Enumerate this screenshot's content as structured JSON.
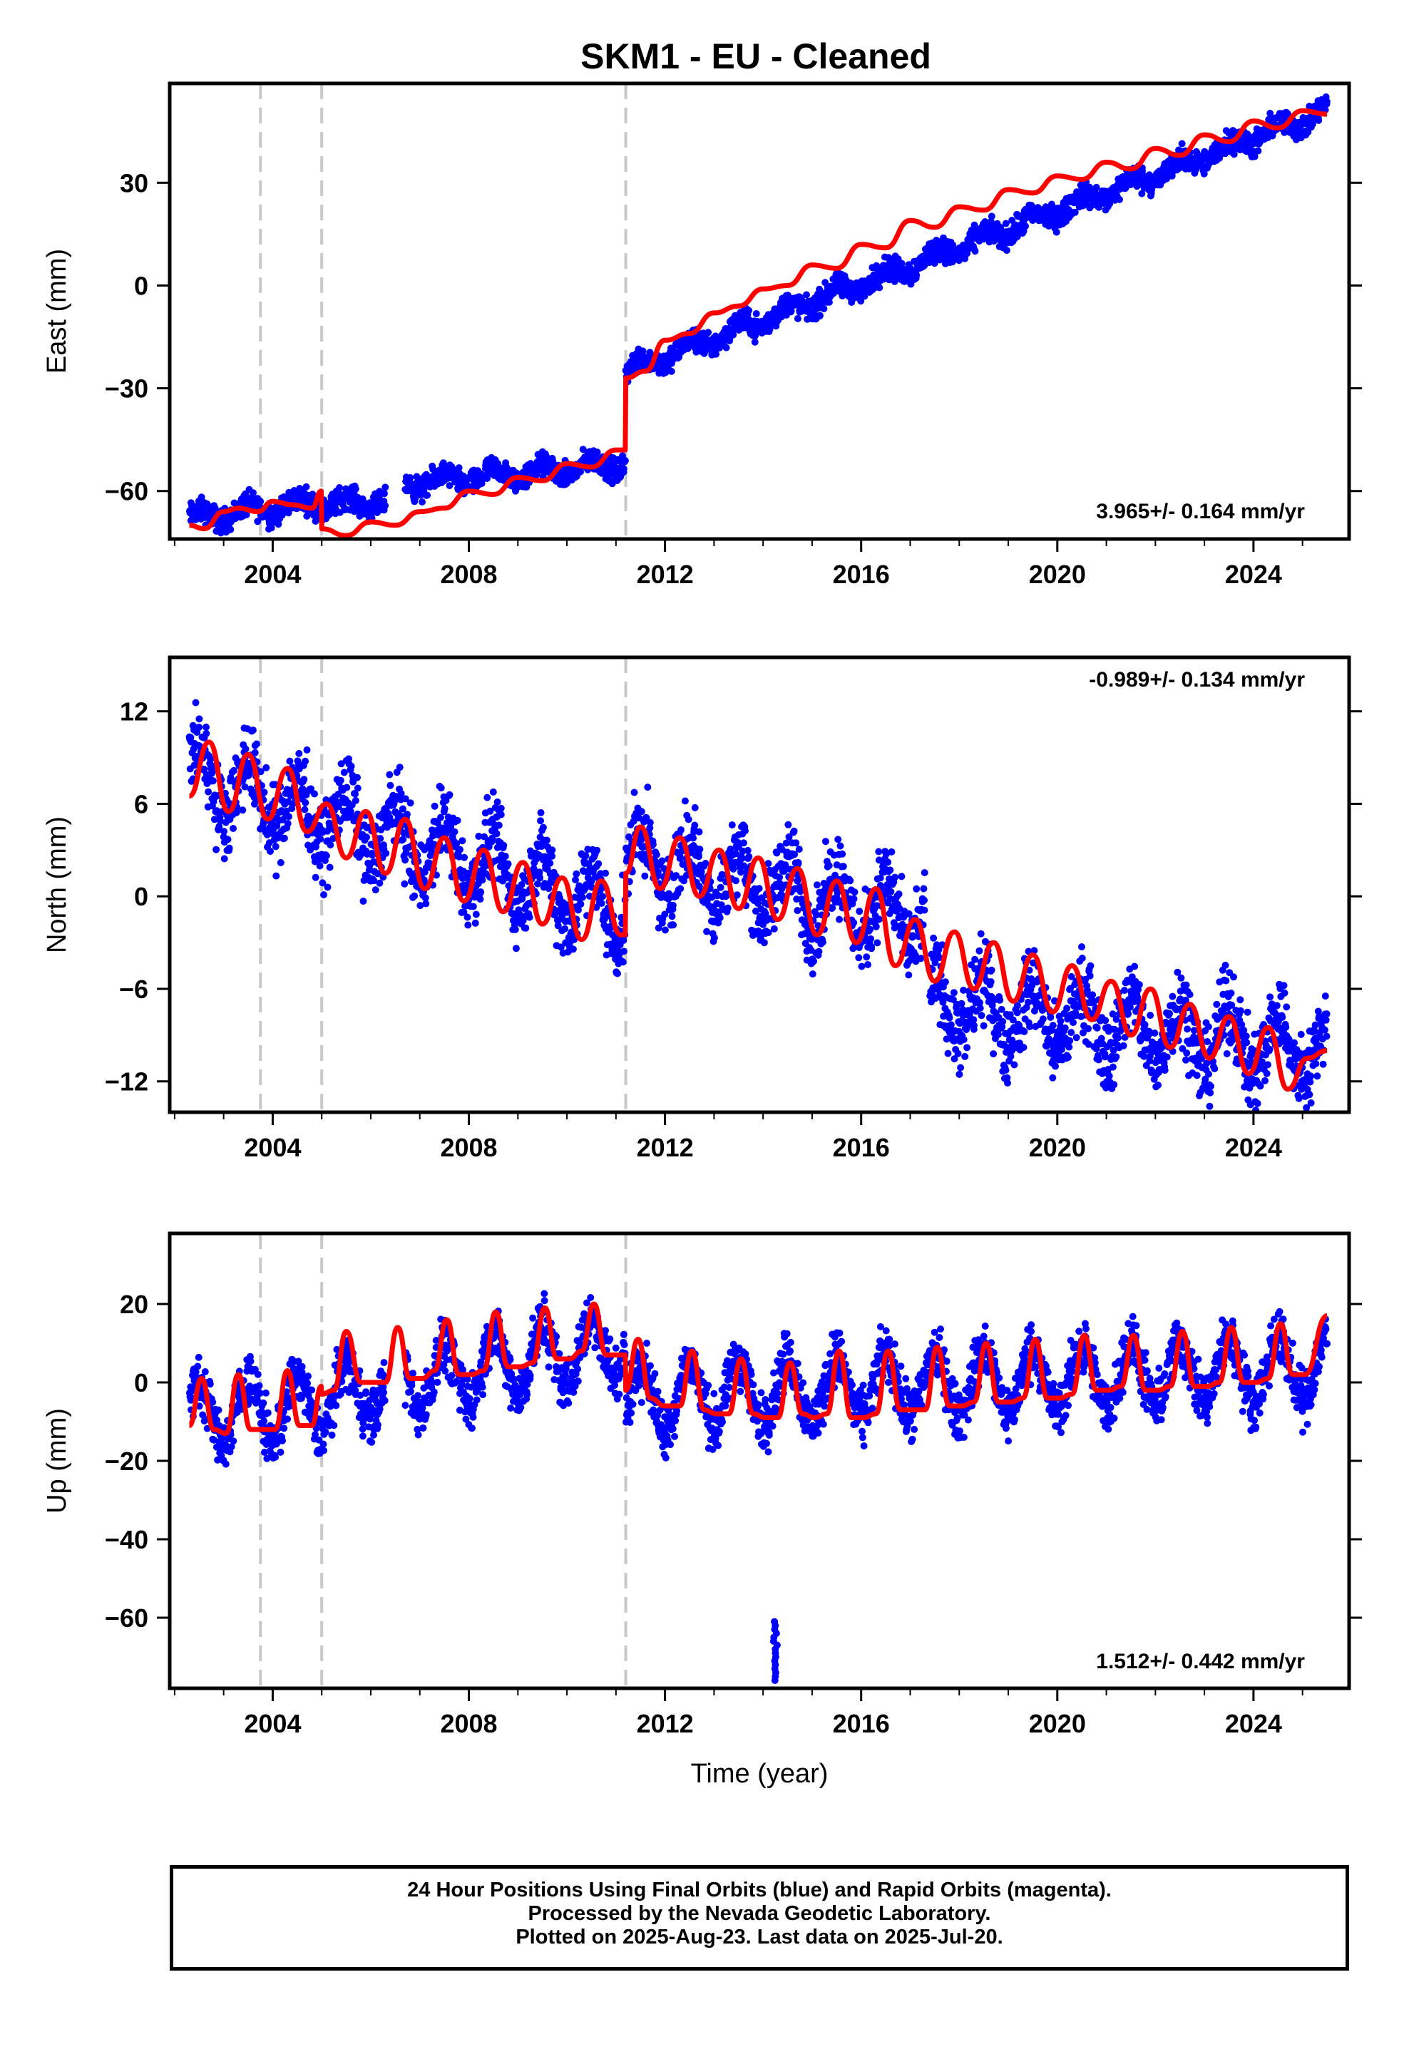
{
  "title": "SKM1  - EU - Cleaned",
  "footer": {
    "line1": "24 Hour Positions Using Final Orbits (blue) and Rapid Orbits (magenta).",
    "line2": "Processed by the Nevada Geodetic Laboratory.",
    "line3": "Plotted on 2025-Aug-23. Last data on 2025-Jul-20."
  },
  "colors": {
    "data_points": "#0000ff",
    "model_fit": "#ff0000",
    "event_lines": "#c8c8c8",
    "frame": "#000000"
  },
  "chart_data": [
    {
      "type": "scatter",
      "component": "East",
      "ylabel": "East (mm)",
      "xlabel": "",
      "xlim": [
        2001.9,
        2025.95
      ],
      "ylim": [
        -74,
        59
      ],
      "xticks": [
        2004,
        2008,
        2012,
        2016,
        2020,
        2024
      ],
      "yticks": [
        -60,
        -30,
        0,
        30
      ],
      "rate_text": "3.965+/- 0.164 mm/yr",
      "rate_position": "bottom-right",
      "event_lines_x": [
        2003.75,
        2005.0,
        2011.2
      ],
      "model_fit": {
        "x": [
          2002.3,
          2002.6,
          2003.0,
          2003.3,
          2003.7,
          2004.0,
          2004.4,
          2004.8,
          2004.99,
          2005.0,
          2005.5,
          2006.0,
          2006.5,
          2007.0,
          2007.5,
          2008.0,
          2008.5,
          2009.0,
          2009.5,
          2010.0,
          2010.5,
          2011.0,
          2011.19,
          2011.2,
          2011.6,
          2012.0,
          2012.5,
          2013.0,
          2013.5,
          2014.0,
          2014.5,
          2015.0,
          2015.5,
          2016.0,
          2016.5,
          2017.0,
          2017.5,
          2018.0,
          2018.5,
          2019.0,
          2019.5,
          2020.0,
          2020.5,
          2021.0,
          2021.5,
          2022.0,
          2022.5,
          2023.0,
          2023.5,
          2024.0,
          2024.5,
          2025.0,
          2025.5
        ],
        "y": [
          -70,
          -71,
          -66,
          -65,
          -66,
          -63,
          -64,
          -65,
          -60,
          -71,
          -73,
          -69,
          -70,
          -66,
          -65,
          -60,
          -61,
          -56,
          -57,
          -52,
          -53,
          -48,
          -48,
          -27,
          -25,
          -16,
          -14,
          -8,
          -6,
          -1,
          0,
          6,
          5,
          12,
          11,
          19,
          17,
          23,
          22,
          28,
          27,
          32,
          31,
          36,
          34,
          40,
          38,
          44,
          42,
          48,
          46,
          51,
          50
        ]
      },
      "observations": {
        "segments": [
          {
            "x_start": 2002.3,
            "x_end": 2004.99,
            "y_start": -68,
            "y_end": -63
          },
          {
            "x_start": 2005.0,
            "x_end": 2006.3,
            "y_start": -64,
            "y_end": -63
          },
          {
            "x_start": 2006.7,
            "x_end": 2011.19,
            "y_start": -58,
            "y_end": -52
          },
          {
            "x_start": 2011.2,
            "x_end": 2025.5,
            "y_start": -25,
            "y_end": 51
          }
        ],
        "scatter_amplitude": 3,
        "seasonal_amplitude": 2
      }
    },
    {
      "type": "scatter",
      "component": "North",
      "ylabel": "North (mm)",
      "xlabel": "",
      "xlim": [
        2001.9,
        2025.95
      ],
      "ylim": [
        -14,
        15.5
      ],
      "xticks": [
        2004,
        2008,
        2012,
        2016,
        2020,
        2024
      ],
      "yticks": [
        -12,
        -6,
        0,
        6,
        12
      ],
      "rate_text": "-0.989+/- 0.134 mm/yr",
      "rate_position": "top-right",
      "event_lines_x": [
        2003.75,
        2005.0,
        2011.2
      ],
      "model_fit": {
        "x": [
          2002.3,
          2002.7,
          2003.1,
          2003.5,
          2003.9,
          2004.3,
          2004.7,
          2005.1,
          2005.5,
          2005.9,
          2006.3,
          2006.7,
          2007.1,
          2007.5,
          2007.9,
          2008.3,
          2008.7,
          2009.1,
          2009.5,
          2009.9,
          2010.3,
          2010.7,
          2011.1,
          2011.19,
          2011.2,
          2011.5,
          2011.9,
          2012.3,
          2012.7,
          2013.1,
          2013.5,
          2013.9,
          2014.3,
          2014.7,
          2015.1,
          2015.5,
          2015.9,
          2016.3,
          2016.7,
          2017.1,
          2017.5,
          2017.9,
          2018.3,
          2018.7,
          2019.1,
          2019.5,
          2019.9,
          2020.3,
          2020.7,
          2021.1,
          2021.5,
          2021.9,
          2022.3,
          2022.7,
          2023.1,
          2023.5,
          2023.9,
          2024.3,
          2024.7,
          2025.1,
          2025.5
        ],
        "y": [
          6.5,
          10.0,
          5.5,
          9.2,
          5.0,
          8.3,
          4.2,
          6.0,
          2.5,
          5.5,
          1.5,
          5.0,
          0.5,
          3.8,
          -0.3,
          3.0,
          -1.0,
          2.2,
          -1.8,
          1.2,
          -2.8,
          1.0,
          -2.5,
          -2.5,
          1.5,
          4.5,
          0.5,
          3.8,
          0.0,
          3.0,
          -0.8,
          2.5,
          -1.5,
          1.8,
          -2.5,
          1.0,
          -3.0,
          0.5,
          -4.5,
          -1.5,
          -5.5,
          -2.3,
          -6.0,
          -3.0,
          -6.8,
          -3.8,
          -7.5,
          -4.5,
          -8.0,
          -5.5,
          -9.0,
          -6.0,
          -9.8,
          -7.0,
          -10.5,
          -7.8,
          -11.5,
          -8.5,
          -12.5,
          -10.5,
          -10.0
        ]
      },
      "observations": {
        "segments": [
          {
            "x_start": 2002.3,
            "x_end": 2011.19,
            "y_start": 8,
            "y_end": -1
          },
          {
            "x_start": 2011.2,
            "x_end": 2017.3,
            "y_start": 2.5,
            "y_end": -1.5
          },
          {
            "x_start": 2017.4,
            "x_end": 2025.5,
            "y_start": -7,
            "y_end": -10
          }
        ],
        "scatter_amplitude": 2.2,
        "seasonal_amplitude": 2
      }
    },
    {
      "type": "scatter",
      "component": "Up",
      "ylabel": "Up (mm)",
      "xlabel": "Time (year)",
      "xlim": [
        2001.9,
        2025.95
      ],
      "ylim": [
        -78,
        38
      ],
      "xticks": [
        2004,
        2008,
        2012,
        2016,
        2020,
        2024
      ],
      "yticks": [
        -60,
        -40,
        -20,
        0,
        20
      ],
      "rate_text": "1.512+/- 0.442 mm/yr",
      "rate_position": "bottom-right",
      "event_lines_x": [
        2003.75,
        2005.0,
        2011.2
      ],
      "model_fit": {
        "x": [
          2002.3,
          2002.55,
          2002.8,
          2003.05,
          2003.3,
          2003.55,
          2003.8,
          2004.05,
          2004.3,
          2004.55,
          2004.8,
          2004.99,
          2005.0,
          2005.25,
          2005.5,
          2005.8,
          2006.05,
          2006.3,
          2006.55,
          2006.8,
          2007.05,
          2007.3,
          2007.55,
          2007.8,
          2008.05,
          2008.3,
          2008.55,
          2008.8,
          2009.05,
          2009.3,
          2009.55,
          2009.8,
          2010.05,
          2010.3,
          2010.55,
          2010.8,
          2011.05,
          2011.19,
          2011.2,
          2011.45,
          2011.7,
          2012.0,
          2012.3,
          2012.55,
          2012.8,
          2013.05,
          2013.3,
          2013.55,
          2013.8,
          2014.05,
          2014.3,
          2014.55,
          2014.8,
          2015.05,
          2015.3,
          2015.55,
          2015.8,
          2016.05,
          2016.3,
          2016.55,
          2016.8,
          2017.05,
          2017.3,
          2017.55,
          2017.8,
          2018.05,
          2018.3,
          2018.55,
          2018.8,
          2019.05,
          2019.3,
          2019.55,
          2019.8,
          2020.05,
          2020.3,
          2020.55,
          2020.8,
          2021.05,
          2021.3,
          2021.55,
          2021.8,
          2022.05,
          2022.3,
          2022.55,
          2022.8,
          2023.05,
          2023.3,
          2023.55,
          2023.8,
          2024.05,
          2024.3,
          2024.55,
          2024.8,
          2025.05,
          2025.5
        ],
        "y": [
          -11,
          1,
          -12,
          -13,
          2,
          -12,
          -12,
          -12,
          3,
          -11,
          -11,
          -1,
          -3,
          -2,
          13,
          0,
          0,
          0,
          14,
          1,
          1,
          3,
          16,
          2,
          2,
          3,
          18,
          4,
          4,
          5,
          19,
          6,
          6,
          8,
          20,
          7,
          7,
          7,
          -2,
          11,
          -4,
          -6,
          -6,
          8,
          -7,
          -8,
          -8,
          6,
          -8,
          -9,
          -9,
          5,
          -8,
          -9,
          -8,
          8,
          -9,
          -9,
          -8,
          8,
          -7,
          -7,
          -7,
          9,
          -6,
          -6,
          -5,
          10,
          -5,
          -5,
          -4,
          11,
          -4,
          -4,
          -3,
          12,
          -2,
          -2,
          -1,
          12,
          -2,
          -2,
          -1,
          13,
          -1,
          -1,
          0,
          14,
          0,
          0,
          1,
          15,
          2,
          2,
          17
        ]
      },
      "observations": {
        "segments": [
          {
            "x_start": 2002.3,
            "x_end": 2004.99,
            "y_start": -8,
            "y_end": -6
          },
          {
            "x_start": 2005.0,
            "x_end": 2006.3,
            "y_start": -4,
            "y_end": 0
          },
          {
            "x_start": 2006.7,
            "x_end": 2011.19,
            "y_start": 0,
            "y_end": 10
          },
          {
            "x_start": 2011.2,
            "x_end": 2025.5,
            "y_start": -4,
            "y_end": 4
          }
        ],
        "scatter_amplitude": 6,
        "seasonal_amplitude": 8,
        "outlier_cluster": {
          "x": 2014.25,
          "y_min": -76,
          "y_max": -61
        }
      }
    }
  ]
}
